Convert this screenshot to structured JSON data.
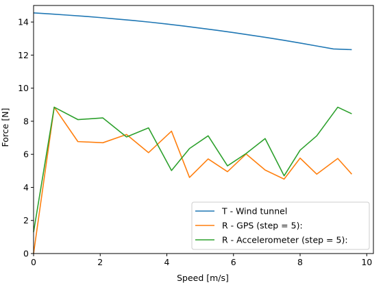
{
  "chart_data": {
    "type": "line",
    "title": "",
    "xlabel": "Speed [m/s]",
    "ylabel": "Force [N]",
    "xlim": [
      0,
      10.2
    ],
    "ylim": [
      0,
      15
    ],
    "xticks": [
      "0",
      "2",
      "4",
      "6",
      "8",
      "10"
    ],
    "yticks": [
      "0",
      "2",
      "4",
      "6",
      "8",
      "10",
      "12",
      "14"
    ],
    "grid": false,
    "legend_position": "lower-right",
    "series": [
      {
        "name": "T - Wind tunnel",
        "color": "#1f77b4",
        "x": [
          0,
          0.5,
          1.0,
          1.5,
          2.0,
          2.5,
          3.0,
          3.5,
          4.0,
          4.5,
          5.0,
          5.5,
          6.0,
          6.5,
          7.0,
          7.5,
          8.0,
          8.5,
          9.0,
          9.55
        ],
        "y": [
          14.55,
          14.49,
          14.42,
          14.35,
          14.27,
          14.18,
          14.09,
          13.99,
          13.88,
          13.76,
          13.63,
          13.5,
          13.36,
          13.21,
          13.06,
          12.9,
          12.73,
          12.55,
          12.37,
          12.33
        ]
      },
      {
        "name": "R - GPS (step = 5):",
        "color": "#ff7f0e",
        "x": [
          0,
          0.62,
          1.33,
          2.08,
          2.79,
          3.45,
          4.14,
          4.68,
          5.24,
          5.82,
          6.38,
          6.95,
          7.52,
          8.0,
          8.5,
          9.13,
          9.55
        ],
        "y": [
          0,
          8.85,
          6.77,
          6.7,
          7.2,
          6.1,
          7.4,
          4.6,
          5.72,
          4.95,
          6.02,
          5.05,
          4.5,
          5.77,
          4.8,
          5.75,
          4.8
        ]
      },
      {
        "name": "R - Accelerometer (step = 5):",
        "color": "#2ca02c",
        "x": [
          0,
          0.62,
          1.33,
          2.08,
          2.79,
          3.45,
          4.14,
          4.68,
          5.24,
          5.82,
          6.38,
          6.95,
          7.52,
          8.0,
          8.5,
          9.13,
          9.55
        ],
        "y": [
          1.3,
          8.85,
          8.1,
          8.2,
          7.05,
          7.6,
          5.02,
          6.35,
          7.12,
          5.3,
          6.05,
          6.95,
          4.7,
          6.25,
          7.12,
          8.85,
          8.45
        ]
      }
    ]
  }
}
